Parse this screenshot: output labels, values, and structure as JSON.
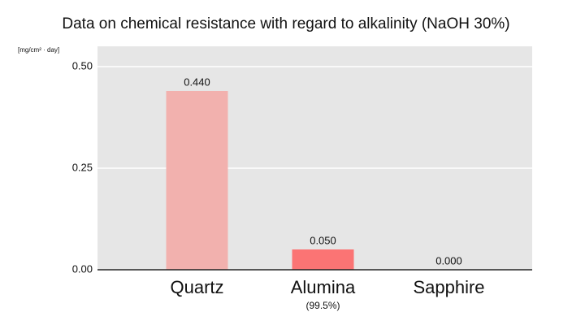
{
  "chart_data": {
    "type": "bar",
    "title": "Data on chemical resistance with regard to alkalinity (NaOH 30%)",
    "y_label": "[mg/cm² · day]",
    "categories": [
      "Quartz",
      "Alumina",
      "Sapphire"
    ],
    "category_notes": [
      null,
      "(99.5%)",
      null
    ],
    "values": [
      0.44,
      0.05,
      0.0
    ],
    "value_labels": [
      "0.440",
      "0.050",
      "0.000"
    ],
    "colors": [
      "#f2b1ae",
      "#fb7474",
      "#fb7474"
    ],
    "ylim": [
      0,
      0.55
    ],
    "yticks": [
      {
        "value": 0,
        "label": "0.00"
      },
      {
        "value": 0.25,
        "label": "0.25"
      },
      {
        "value": 0.5,
        "label": "0.50"
      }
    ],
    "grid": true
  }
}
